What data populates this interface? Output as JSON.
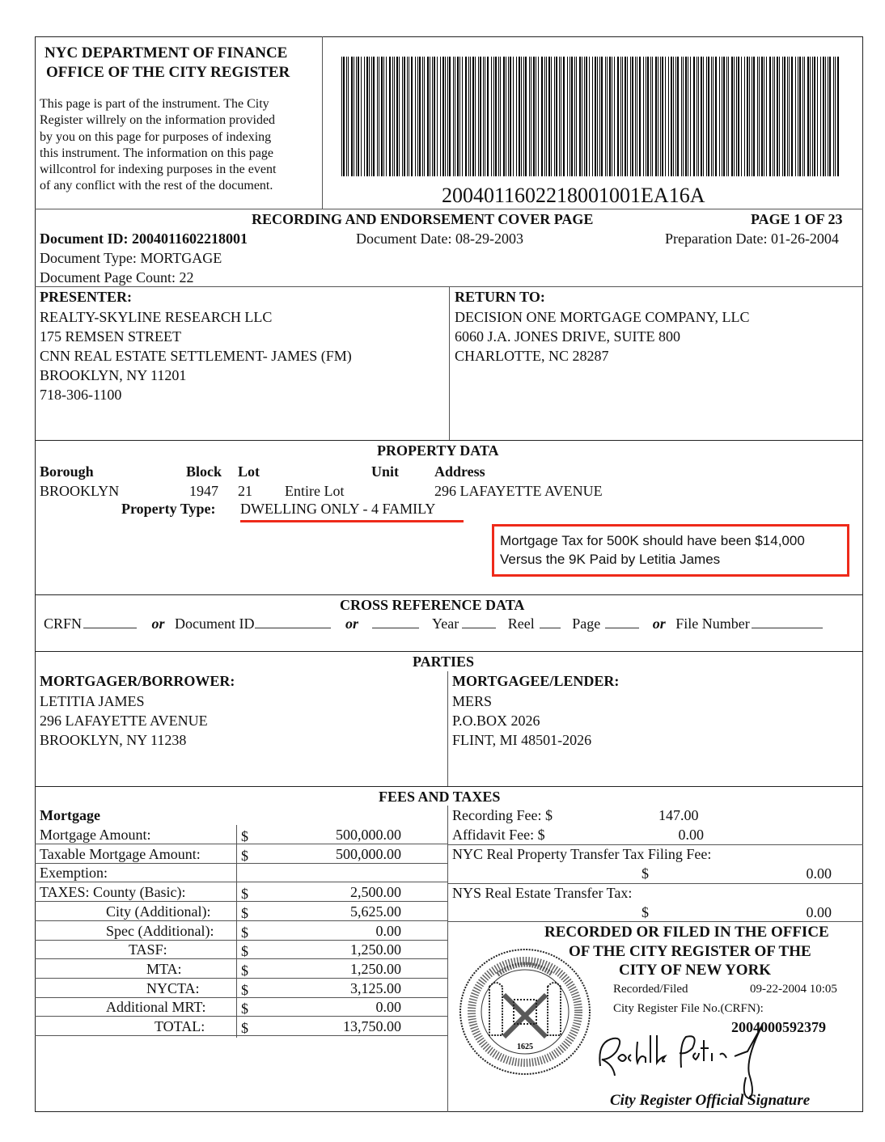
{
  "header": {
    "office_line1": "NYC DEPARTMENT  OF FINANCE",
    "office_line2": "OFFICE  OF THE CITY REGISTER",
    "notice_lines": [
      "This page is part of the instrument. The City",
      "Register willrely on the information provided",
      "by you on this page for purposes  of indexing",
      "this instrument. The information on this page",
      "willcontrol  for indexing purposes  in the event",
      "of any conflict with the rest of the document."
    ],
    "barcode_number": "2004011602218001001EA16A",
    "title": "RECORDING  AND ENDORSEMENT  COVER PAGE",
    "page_label": "PAGE 1 OF 23"
  },
  "document": {
    "id": "Document  ID: 2004011602218001",
    "date": "Document Date: 08-29-2003",
    "prep_date": "Preparation Date: 01-26-2004",
    "type": "Document Type: MORTGAGE",
    "page_count": "Document Page Count: 22"
  },
  "presenter": {
    "heading": "PRESENTER:",
    "lines": [
      "REALTY-SKYLINE  RESEARCH  LLC",
      "175 REMSEN  STREET",
      "CNN REAL ESTATE SETTLEMENT- JAMES (FM)",
      "BROOKLYN,  NY   11201",
      "718-306-1100"
    ]
  },
  "return_to": {
    "heading": "RETURN  TO:",
    "lines": [
      "DECISION  ONE  MORTGAGE  COMPANY,  LLC",
      "6060 J.A. JONES  DRIVE,  SUITE  800",
      "CHARLOTTE,  NC   28287"
    ]
  },
  "property": {
    "heading": "PROPERTY  DATA",
    "col_borough": "Borough",
    "col_block": "Block",
    "col_lot": "Lot",
    "col_unit": "Unit",
    "col_address": "Address",
    "borough": "BROOKLYN",
    "block": "1947",
    "lot": "21",
    "lot_note": "Entire Lot",
    "address": "296 LAFAYETTE  AVENUE",
    "type_label": "Property  Type:",
    "type_value": "DWELLING  ONLY  - 4 FAMILY",
    "annotation_line1": "Mortgage Tax for 500K should have been $14,000",
    "annotation_line2": "Versus the 9K Paid by Letitia James",
    "annotation_color": "#ee2a1a"
  },
  "cross_reference": {
    "heading": "CROSS  REFERENCE  DATA",
    "crfn": "CRFN",
    "or": "or",
    "document_id": "Document ID",
    "year": "Year",
    "reel": "Reel",
    "page": "Page",
    "file_number": "File Number"
  },
  "parties": {
    "heading": "PARTIES",
    "borrower_heading": "MORTGAGER/BORROWER:",
    "borrower_lines": [
      "LETITIA  JAMES",
      "296 LAFAYETTE  AVENUE",
      "BROOKLYN,  NY   11238"
    ],
    "lender_heading": "MORTGAGEE/LENDER:",
    "lender_lines": [
      "MERS",
      "P.O.BOX  2026",
      "FLINT,  MI  48501-2026"
    ]
  },
  "fees": {
    "heading": "FEES AND TAXES",
    "mortgage_heading": "Mortgage",
    "rows": [
      {
        "label": "Mortgage Amount:",
        "cur": "$",
        "value": "500,000.00"
      },
      {
        "label": "Taxable Mortgage  Amount:",
        "cur": "$",
        "value": "500,000.00"
      },
      {
        "label": "Exemption:",
        "cur": "",
        "value": ""
      },
      {
        "label": "TAXES:  County (Basic):",
        "cur": "$",
        "value": "2,500.00"
      },
      {
        "label": "City (Additional):",
        "cur": "$",
        "value": "5,625.00"
      },
      {
        "label": "Spec (Additional):",
        "cur": "$",
        "value": "0.00"
      },
      {
        "label": "TASF:",
        "cur": "$",
        "value": "1,250.00"
      },
      {
        "label": "MTA:",
        "cur": "$",
        "value": "1,250.00"
      },
      {
        "label": "NYCTA:",
        "cur": "$",
        "value": "3,125.00"
      },
      {
        "label": "Additional MRT:",
        "cur": "$",
        "value": "0.00"
      },
      {
        "label": "TOTAL:",
        "cur": "$",
        "value": "13,750.00"
      }
    ],
    "recording_fee_label": "Recording Fee: $",
    "recording_fee": "147.00",
    "affidavit_fee_label": "Affidavit Fee:    $",
    "affidavit_fee": "0.00",
    "nyc_rptt_label": "NYC  Real Property  Transfer  Tax Filing Fee:",
    "nyc_rptt_cur": "$",
    "nyc_rptt": "0.00",
    "nys_rett_label": "NYS  Real Estate  Transfer  Tax:",
    "nys_rett_cur": "$",
    "nys_rett": "0.00"
  },
  "recorded": {
    "line1": "RECORDED  OR  FILED  IN  THE  OFFICE",
    "line2": "OF THE CITY REGISTER OF THE",
    "line3": "CITY OF NEW YORK",
    "filed_label": "Recorded/Filed",
    "filed_datetime": "09-22-2004 10:05",
    "crfn_label": "City  Register File No.(CRFN):",
    "crfn": "2004000592379",
    "signature_caption": "City Register Official Signature",
    "signature_text": "Rochelle Patricia",
    "seal_year": "1625",
    "seal_text": "SIGILLUM CIVITATIS NOVI EBORACI"
  }
}
